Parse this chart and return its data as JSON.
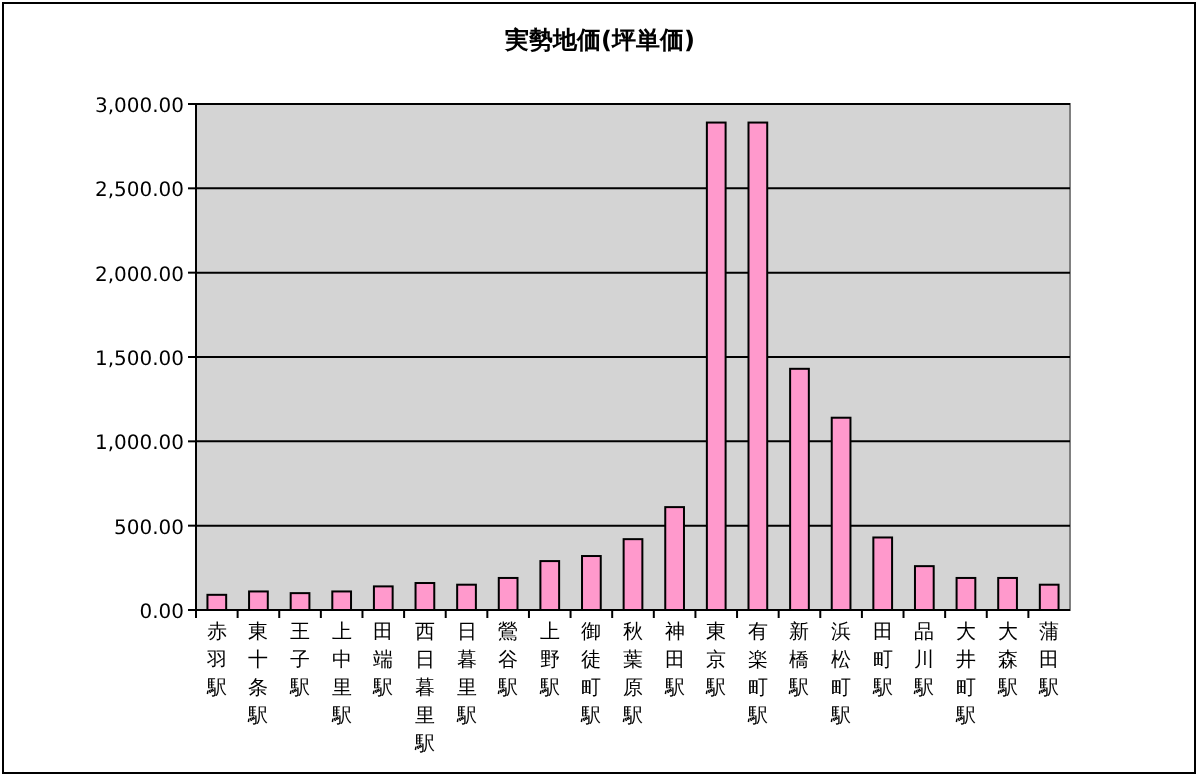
{
  "chart_data": {
    "type": "bar",
    "title": "実勢地価(坪単価)",
    "categories": [
      "赤羽駅",
      "東十条駅",
      "王子駅",
      "上中里駅",
      "田端駅",
      "西日暮里駅",
      "日暮里駅",
      "鶯谷駅",
      "上野駅",
      "御徒町駅",
      "秋葉原駅",
      "神田駅",
      "東京駅",
      "有楽町駅",
      "新橋駅",
      "浜松町駅",
      "田町駅",
      "品川駅",
      "大井町駅",
      "大森駅",
      "蒲田駅"
    ],
    "values": [
      90,
      110,
      100,
      110,
      140,
      160,
      150,
      190,
      290,
      320,
      420,
      610,
      2890,
      2890,
      1430,
      1140,
      430,
      260,
      190,
      190,
      150
    ],
    "color": "#ff99cc",
    "ylim": [
      0,
      3000
    ],
    "yticks": [
      {
        "value": 0,
        "label": "0.00"
      },
      {
        "value": 500,
        "label": "500.00"
      },
      {
        "value": 1000,
        "label": "1,000.00"
      },
      {
        "value": 1500,
        "label": "1,500.00"
      },
      {
        "value": 2000,
        "label": "2,000.00"
      },
      {
        "value": 2500,
        "label": "2,500.00"
      },
      {
        "value": 3000,
        "label": "3,000.00"
      }
    ],
    "grid": "y"
  }
}
